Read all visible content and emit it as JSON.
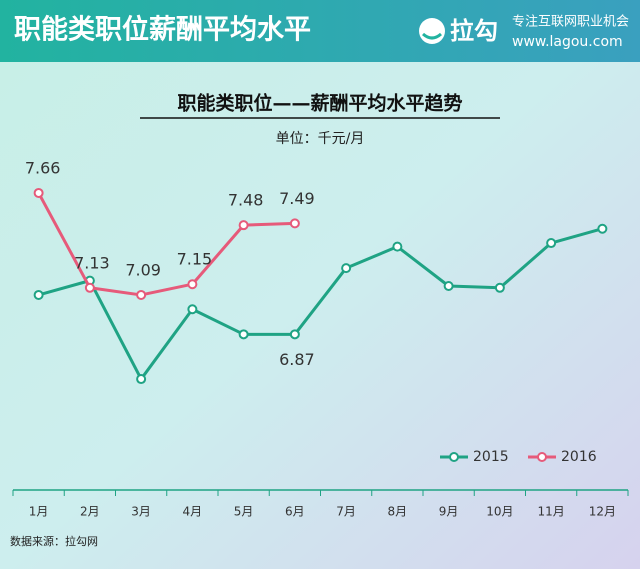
{
  "header": {
    "title": "职能类职位薪酬平均水平",
    "logo": "拉勾",
    "slogan": "专注互联网职业机会",
    "url": "www.lagou.com"
  },
  "source": "数据来源：拉勾网",
  "chart_data": {
    "type": "line",
    "title": "职能类职位——薪酬平均水平趋势",
    "subtitle": "单位：千元/月",
    "categories": [
      "1月",
      "2月",
      "3月",
      "4月",
      "5月",
      "6月",
      "7月",
      "8月",
      "9月",
      "10月",
      "11月",
      "12月"
    ],
    "series": [
      {
        "name": "2015",
        "color": "#1fa384",
        "values": [
          7.09,
          7.17,
          6.62,
          7.01,
          6.87,
          6.87,
          7.24,
          7.36,
          7.14,
          7.13,
          7.38,
          7.46
        ],
        "value_labels": [
          null,
          null,
          null,
          null,
          null,
          "6.87",
          null,
          null,
          null,
          null,
          null,
          null
        ]
      },
      {
        "name": "2016",
        "color": "#e65a7a",
        "values": [
          7.66,
          7.13,
          7.09,
          7.15,
          7.48,
          7.49,
          null,
          null,
          null,
          null,
          null,
          null
        ],
        "value_labels": [
          "7.66",
          "7.13",
          "7.09",
          "7.15",
          "7.48",
          "7.49",
          null,
          null,
          null,
          null,
          null,
          null
        ]
      }
    ],
    "ylim": [
      6.0,
      7.9
    ],
    "legend": "lower right",
    "grid": false
  }
}
